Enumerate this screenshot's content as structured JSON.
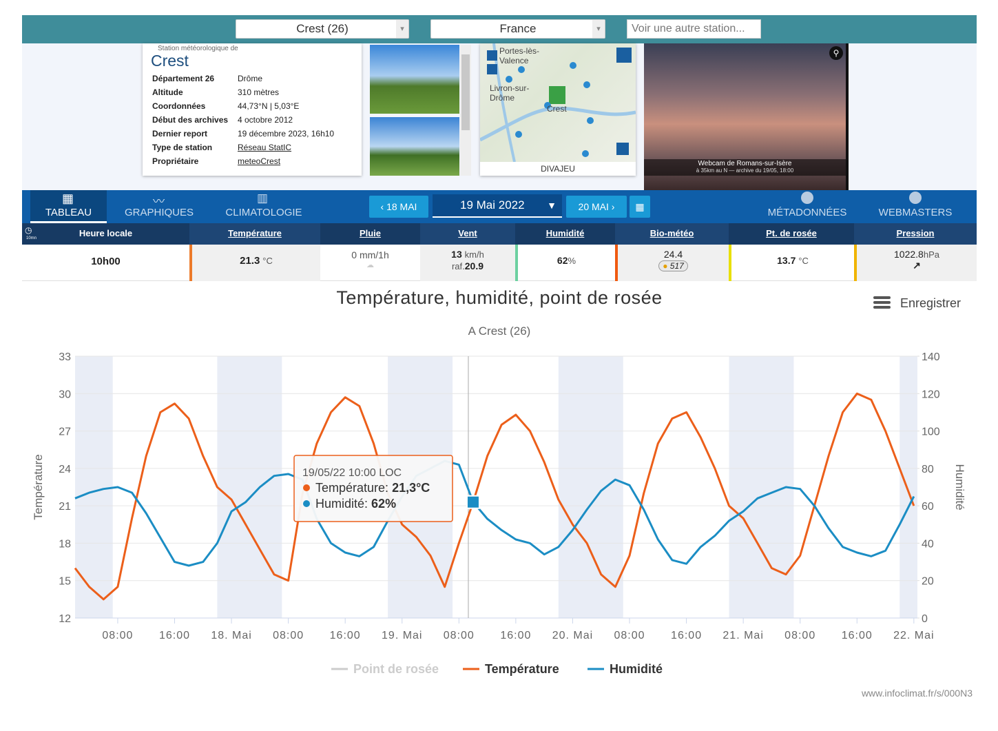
{
  "header": {
    "station_select": "Crest (26)",
    "country_select": "France",
    "search_placeholder": "Voir une autre station..."
  },
  "station": {
    "caption": "Station météorologique de",
    "name": "Crest",
    "rows": [
      {
        "label": "Département 26",
        "value": "Drôme"
      },
      {
        "label": "Altitude",
        "value": "310 mètres"
      },
      {
        "label": "Coordonnées",
        "value": "44,73°N | 5,03°E"
      },
      {
        "label": "Début des archives",
        "value": "4 octobre 2012"
      },
      {
        "label": "Dernier report",
        "value": "19 décembre 2023, 16h10"
      },
      {
        "label": "Type de station",
        "value": "Réseau StatIC"
      },
      {
        "label": "Propriétaire",
        "value": "meteoCrest"
      }
    ]
  },
  "map": {
    "labels": [
      "Portes-lès-Valence",
      "Livron-sur-Drôme",
      "Crest"
    ],
    "caption": "DIVAJEU"
  },
  "webcam": {
    "title": "Webcam de Romans-sur-Isère",
    "subtitle": "à 35km au N — archive du 19/05, 18:00"
  },
  "nav": {
    "tabs": [
      "TABLEAU",
      "GRAPHIQUES",
      "CLIMATOLOGIE"
    ],
    "prev": "18 MAI",
    "date": "19 Mai 2022",
    "next": "20 MAI",
    "links": [
      "MÉTADONNÉES",
      "WEBMASTERS"
    ]
  },
  "table": {
    "interval": "10mn",
    "headers": [
      "Heure locale",
      "Température",
      "Pluie",
      "Vent",
      "Humidité",
      "Bio-météo",
      "Pt. de rosée",
      "Pression"
    ],
    "row": {
      "time": "10h00",
      "temperature": {
        "value": "21.3",
        "unit": "°C"
      },
      "rain": "0 mm/1h",
      "wind": {
        "value": "13",
        "unit": "km/h",
        "gust_label": "raf.",
        "gust": "20.9"
      },
      "humidity": {
        "value": "62",
        "unit": "%"
      },
      "bio": {
        "value": "24.4",
        "badge": "517"
      },
      "dew_point": {
        "value": "13.7",
        "unit": "°C"
      },
      "pressure": {
        "value": "1022.8",
        "unit": "hPa"
      }
    }
  },
  "chart_data": {
    "type": "line",
    "title": "Température, humidité, point de rosée",
    "subtitle": "A Crest (26)",
    "menu": "Enregistrer",
    "y_label": "Température",
    "y2_label": "Humidité",
    "credit": "www.infoclimat.fr/s/000N3",
    "x": [
      2,
      4,
      6,
      8,
      10,
      12,
      14,
      16,
      18,
      20,
      22,
      24,
      26,
      28,
      30,
      32,
      34,
      36,
      38,
      40,
      42,
      44,
      46,
      48,
      50,
      52,
      54,
      56,
      58,
      60,
      62,
      64,
      66,
      68,
      70,
      72,
      74,
      76,
      78,
      80,
      82,
      84,
      86,
      88,
      90,
      92,
      94,
      96,
      98,
      100,
      102,
      104,
      106,
      108,
      110,
      112,
      114,
      116,
      118,
      120
    ],
    "xlim": [
      2,
      120.5
    ],
    "xticks": [
      {
        "value": 8,
        "label": "08:00"
      },
      {
        "value": 16,
        "label": "16:00"
      },
      {
        "value": 24,
        "label": "18. Mai"
      },
      {
        "value": 32,
        "label": "08:00"
      },
      {
        "value": 40,
        "label": "16:00"
      },
      {
        "value": 48,
        "label": "19. Mai"
      },
      {
        "value": 56,
        "label": "08:00"
      },
      {
        "value": 64,
        "label": "16:00"
      },
      {
        "value": 72,
        "label": "20. Mai"
      },
      {
        "value": 80,
        "label": "08:00"
      },
      {
        "value": 88,
        "label": "16:00"
      },
      {
        "value": 96,
        "label": "21. Mai"
      },
      {
        "value": 104,
        "label": "08:00"
      },
      {
        "value": 112,
        "label": "16:00"
      },
      {
        "value": 120,
        "label": "22. Mai"
      }
    ],
    "ylim": [
      12,
      33
    ],
    "yticks": [
      12,
      15,
      18,
      21,
      24,
      27,
      30,
      33
    ],
    "y2lim": [
      0,
      140
    ],
    "y2ticks": [
      0,
      20,
      40,
      60,
      80,
      100,
      120,
      140
    ],
    "grid": true,
    "hidden_series": [
      {
        "name": "Point de rosée",
        "color": "#cccccc"
      }
    ],
    "series": [
      {
        "name": "Température",
        "color": "#ec5f1a",
        "values": [
          16,
          14.5,
          13.5,
          14.5,
          20,
          25,
          28.5,
          29.2,
          28,
          25,
          22.5,
          21.5,
          19.5,
          17.5,
          15.5,
          15,
          22,
          26,
          28.5,
          29.7,
          29,
          26,
          22,
          19.5,
          18.5,
          17,
          14.5,
          18,
          21.3,
          25,
          27.5,
          28.3,
          27,
          24.5,
          21.5,
          19.5,
          18,
          15.5,
          14.5,
          17,
          22,
          26,
          28,
          28.5,
          26.5,
          24,
          21,
          20,
          18,
          16,
          15.5,
          17,
          21,
          25,
          28.5,
          30,
          29.5,
          27,
          24,
          21
        ]
      },
      {
        "name": "Humidité",
        "color": "#1b8dc4",
        "axis": "y2",
        "values": [
          64,
          67,
          69,
          70,
          67,
          56,
          43,
          30,
          28,
          30,
          40,
          57,
          62,
          70,
          76,
          77,
          74,
          53,
          40,
          35,
          33,
          38,
          52,
          65,
          76,
          80,
          84,
          82,
          62,
          53,
          47,
          42,
          40,
          34,
          38,
          47,
          58,
          68,
          74,
          71,
          58,
          42,
          31,
          29,
          38,
          44,
          52,
          57,
          64,
          67,
          70,
          69,
          60,
          48,
          38,
          35,
          33,
          36,
          50,
          65
        ]
      }
    ],
    "tooltip": {
      "title": "19/05/22 10:00 LOC",
      "items": [
        {
          "label": "Température:",
          "value": "21,3°C"
        },
        {
          "label": "Humidité:",
          "value": "62%"
        }
      ]
    }
  }
}
